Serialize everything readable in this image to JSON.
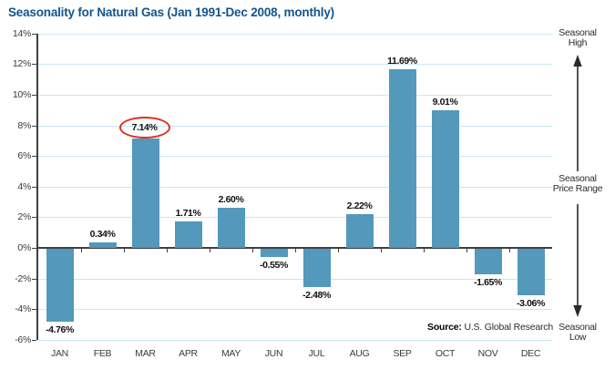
{
  "title": "Seasonality for Natural Gas (Jan 1991-Dec 2008, monthly)",
  "source": {
    "label": "Source:",
    "text": "U.S. Global Research"
  },
  "annotations": {
    "seasonal_high": {
      "line1": "Seasonal",
      "line2": "High"
    },
    "seasonal_price_range": {
      "line1": "Seasonal",
      "line2": "Price Range"
    },
    "seasonal_low": {
      "line1": "Seasonal",
      "line2": "Low"
    }
  },
  "chart_data": {
    "type": "bar",
    "title": "Seasonality for Natural Gas (Jan 1991-Dec 2008, monthly)",
    "categories": [
      "JAN",
      "FEB",
      "MAR",
      "APR",
      "MAY",
      "JUN",
      "JUL",
      "AUG",
      "SEP",
      "OCT",
      "NOV",
      "DEC"
    ],
    "values": [
      -4.76,
      0.34,
      7.14,
      1.71,
      2.6,
      -0.55,
      -2.48,
      2.22,
      11.69,
      9.01,
      -1.65,
      -3.06
    ],
    "value_labels": [
      "-4.76%",
      "0.34%",
      "7.14%",
      "1.71%",
      "2.60%",
      "-0.55%",
      "-2.48%",
      "2.22%",
      "11.69%",
      "9.01%",
      "-1.65%",
      "-3.06%"
    ],
    "highlighted_index": 2,
    "highlight_shape": "red-ellipse",
    "xlabel": "",
    "ylabel": "",
    "ylim": [
      -6,
      14
    ],
    "ytick_step": 2,
    "ytick_labels": [
      "14%",
      "12%",
      "10%",
      "8%",
      "6%",
      "4%",
      "2%",
      "0%",
      "-2%",
      "-4%",
      "-6%"
    ],
    "grid": true,
    "legend_position": "none",
    "colors": {
      "bar": "#5498bc",
      "gridline": "#c8e8f5",
      "axis": "#3f3f3f",
      "title": "#14548c",
      "highlight": "#e22d1d"
    }
  }
}
